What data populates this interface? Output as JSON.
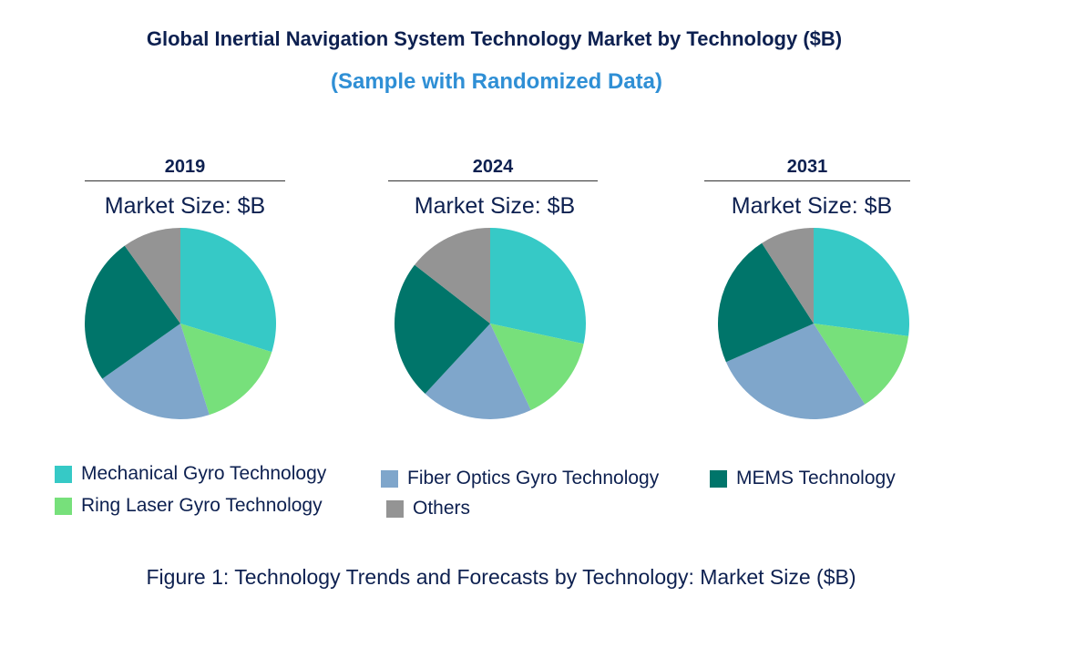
{
  "title": "Global Inertial Navigation System Technology Market by Technology ($B)",
  "subtitle": "(Sample with Randomized Data)",
  "caption": "Figure 1: Technology Trends and Forecasts by Technology: Market Size ($B)",
  "chart_data": [
    {
      "type": "pie",
      "title": "2019",
      "subtitle": "Market Size: $B",
      "labels": [
        "Mechanical Gyro Technology",
        "Ring Laser Gyro Technology",
        "Fiber Optics Gyro Technology",
        "MEMS Technology",
        "Others"
      ],
      "values": [
        29.8,
        15.3,
        20.1,
        24.9,
        9.9
      ]
    },
    {
      "type": "pie",
      "title": "2024",
      "subtitle": "Market Size: $B",
      "labels": [
        "Mechanical Gyro Technology",
        "Ring Laser Gyro Technology",
        "Fiber Optics Gyro Technology",
        "MEMS Technology",
        "Others"
      ],
      "values": [
        28.4,
        14.6,
        18.9,
        23.6,
        14.5
      ]
    },
    {
      "type": "pie",
      "title": "2031",
      "subtitle": "Market Size: $B",
      "labels": [
        "Mechanical Gyro Technology",
        "Ring Laser Gyro Technology",
        "Fiber Optics Gyro Technology",
        "MEMS Technology",
        "Others"
      ],
      "values": [
        27.1,
        13.9,
        27.4,
        22.5,
        9.1
      ]
    }
  ],
  "legend": [
    {
      "label": "Mechanical Gyro Technology",
      "color": "#36c9c6"
    },
    {
      "label": "Ring Laser Gyro Technology",
      "color": "#77e07b"
    },
    {
      "label": "Fiber Optics Gyro Technology",
      "color": "#7fa6cb"
    },
    {
      "label": "MEMS Technology",
      "color": "#00756a"
    },
    {
      "label": "Others",
      "color": "#949494"
    }
  ]
}
